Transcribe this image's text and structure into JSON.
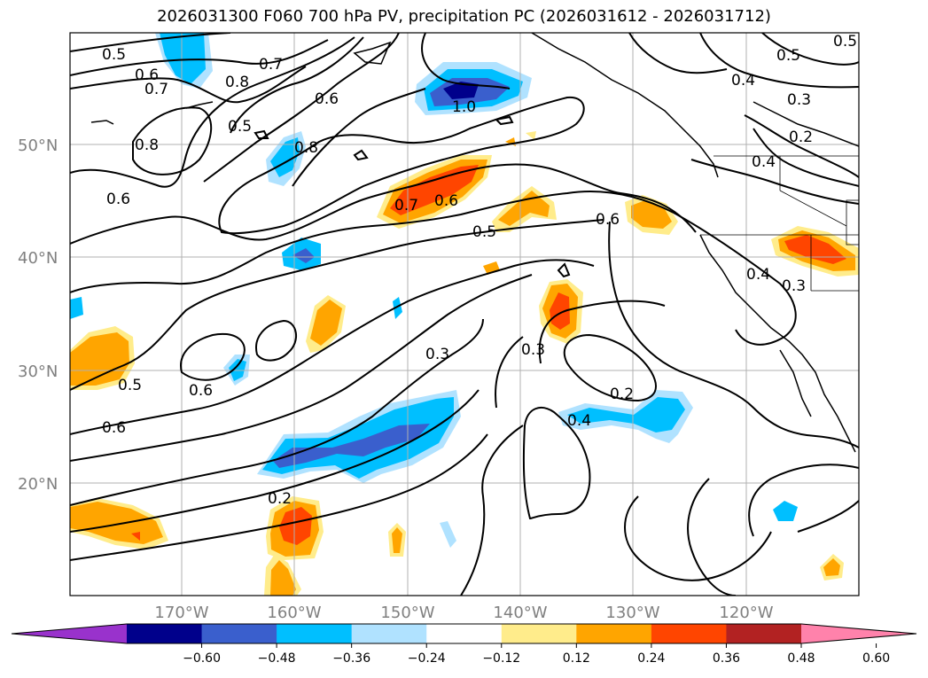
{
  "title": "2026031300 F060 700 hPa PV, precipitation PC (2026031612 - 2026031712)",
  "map": {
    "lat_labels": [
      "50°N",
      "40°N",
      "30°N",
      "20°N"
    ],
    "lon_labels": [
      "170°W",
      "160°W",
      "150°W",
      "140°W",
      "130°W",
      "120°W"
    ],
    "contour_labels": [
      "0.5",
      "0.6",
      "0.7",
      "0.8",
      "0.7",
      "0.5",
      "0.6",
      "0.8",
      "0.8",
      "0.6",
      "1.0",
      "0.7",
      "0.6",
      "0.5",
      "0.5",
      "0.4",
      "0.3",
      "0.2",
      "0.4",
      "0.4",
      "0.3",
      "0.6",
      "0.5",
      "0.6",
      "0.6",
      "0.3",
      "0.3",
      "0.2",
      "0.4",
      "0.2",
      "0.5"
    ]
  },
  "colorbar": {
    "ticks": [
      "−0.60",
      "−0.48",
      "−0.36",
      "−0.24",
      "−0.12",
      "0.12",
      "0.24",
      "0.36",
      "0.48",
      "0.60"
    ],
    "colors": [
      "#9932cc",
      "#00008b",
      "#3a5fcd",
      "#00bfff",
      "#b0e2ff",
      "#ffffff",
      "#ffec8b",
      "#ffa500",
      "#ff4500",
      "#b22222",
      "#ff82ab"
    ]
  }
}
